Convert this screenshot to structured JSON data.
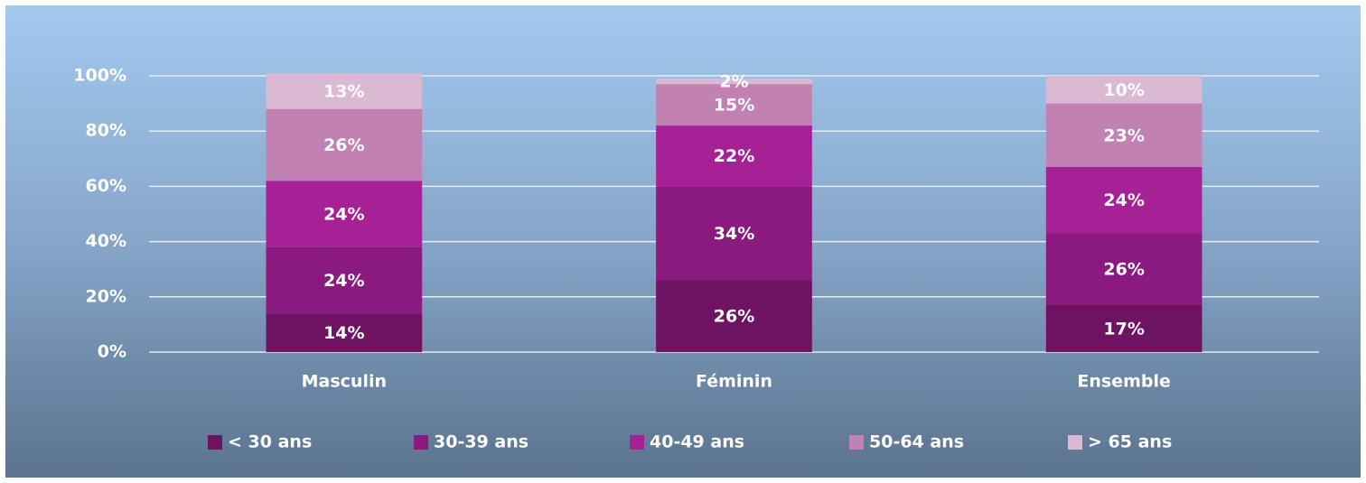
{
  "chart_data": {
    "type": "stacked-bar",
    "categories": [
      "Masculin",
      "Féminin",
      "Ensemble"
    ],
    "series": [
      {
        "name": "< 30 ans",
        "color": "#6e1262",
        "values": [
          14,
          26,
          17
        ],
        "value_labels": [
          "14%",
          "26%",
          "17%"
        ]
      },
      {
        "name": "30-39 ans",
        "color": "#8a1a7d",
        "values": [
          24,
          34,
          26
        ],
        "value_labels": [
          "24%",
          "34%",
          "26%"
        ]
      },
      {
        "name": "40-49 ans",
        "color": "#a72196",
        "values": [
          24,
          22,
          24
        ],
        "value_labels": [
          "24%",
          "22%",
          "24%"
        ]
      },
      {
        "name": "50-64 ans",
        "color": "#c182b3",
        "values": [
          26,
          15,
          23
        ],
        "value_labels": [
          "26%",
          "15%",
          "23%"
        ]
      },
      {
        "name": "> 65 ans",
        "color": "#dcb9d3",
        "values": [
          13,
          2,
          10
        ],
        "value_labels": [
          "13%",
          "2%",
          "10%"
        ]
      }
    ],
    "ylim": [
      0,
      100
    ],
    "yticks": [
      {
        "value": 0,
        "label": "0%"
      },
      {
        "value": 20,
        "label": "20%"
      },
      {
        "value": 40,
        "label": "40%"
      },
      {
        "value": 60,
        "label": "60%"
      },
      {
        "value": 80,
        "label": "80%"
      },
      {
        "value": 100,
        "label": "100%"
      }
    ],
    "grid": true,
    "legend": "bottom"
  }
}
